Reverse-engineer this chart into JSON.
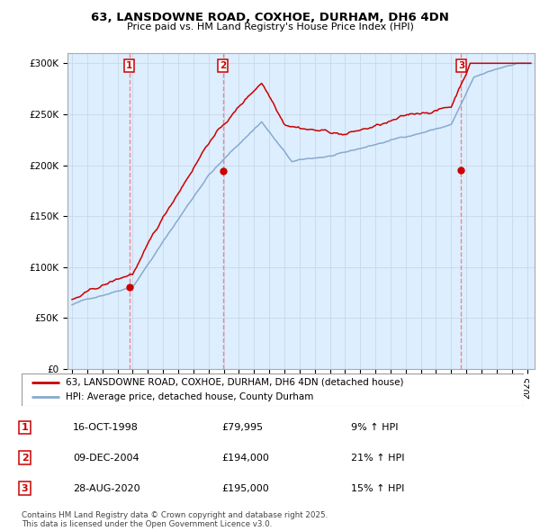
{
  "title": "63, LANSDOWNE ROAD, COXHOE, DURHAM, DH6 4DN",
  "subtitle": "Price paid vs. HM Land Registry's House Price Index (HPI)",
  "ylabel_ticks": [
    "£0",
    "£50K",
    "£100K",
    "£150K",
    "£200K",
    "£250K",
    "£300K"
  ],
  "ytick_values": [
    0,
    50000,
    100000,
    150000,
    200000,
    250000,
    300000
  ],
  "ylim": [
    0,
    310000
  ],
  "xlim_start": 1994.7,
  "xlim_end": 2025.5,
  "sale_dates": [
    1998.79,
    2004.94,
    2020.66
  ],
  "sale_prices": [
    79995,
    194000,
    195000
  ],
  "sale_labels": [
    "1",
    "2",
    "3"
  ],
  "legend_line1": "63, LANSDOWNE ROAD, COXHOE, DURHAM, DH6 4DN (detached house)",
  "legend_line2": "HPI: Average price, detached house, County Durham",
  "table_rows": [
    [
      "1",
      "16-OCT-1998",
      "£79,995",
      "9% ↑ HPI"
    ],
    [
      "2",
      "09-DEC-2004",
      "£194,000",
      "21% ↑ HPI"
    ],
    [
      "3",
      "28-AUG-2020",
      "£195,000",
      "15% ↑ HPI"
    ]
  ],
  "footer": "Contains HM Land Registry data © Crown copyright and database right 2025.\nThis data is licensed under the Open Government Licence v3.0.",
  "line_color_red": "#cc0000",
  "line_color_blue": "#88aacc",
  "vline_color": "#ee8888",
  "chart_bg": "#e8f0f8",
  "plot_bg": "#ddeeff",
  "grid_color": "#c8d8e8",
  "background_color": "#ffffff"
}
